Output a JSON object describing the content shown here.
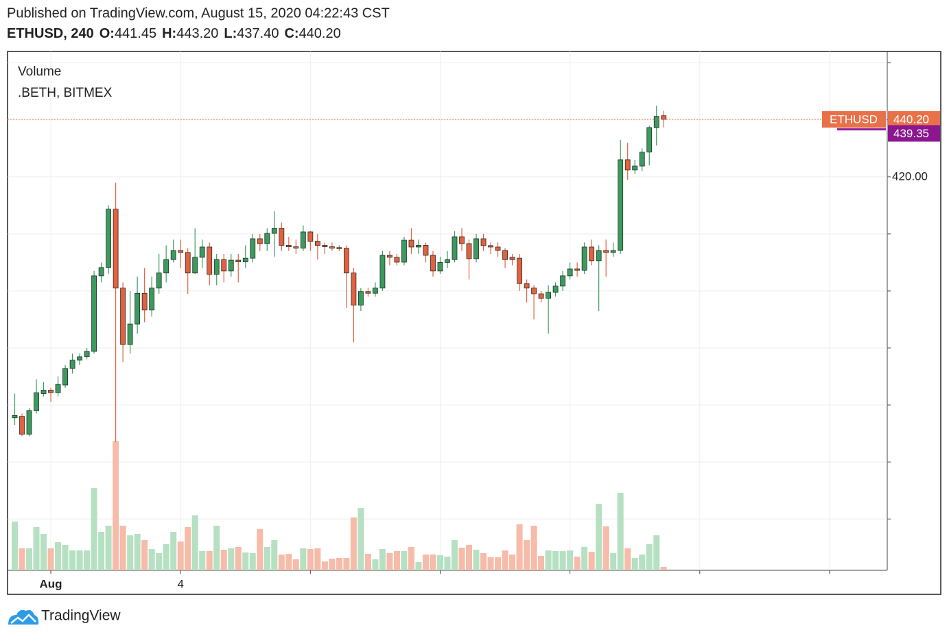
{
  "chart_data": {
    "type": "candlestick",
    "title": "Published on TradingView.com, August 15, 2020 04:22:43 CST",
    "legend_items": [
      "ETHUSD, 240",
      "O:",
      "441.45",
      "H:",
      "443.20",
      "L:",
      "437.40",
      "C:",
      "440.20"
    ],
    "pane_labels": [
      "Volume",
      ".BETH, BITMEX"
    ],
    "brand": "TradingView",
    "xlim": [
      -1,
      121
    ],
    "xticks": [
      {
        "value": 5,
        "label": "Aug"
      },
      {
        "value": 23,
        "label": "4"
      },
      {
        "value": 41,
        "label": null
      },
      {
        "value": 59,
        "label": null
      },
      {
        "value": 77,
        "label": null
      },
      {
        "value": 95,
        "label": null
      },
      {
        "value": 113,
        "label": null
      }
    ],
    "ylim": [
      282,
      464
    ],
    "yticks": [
      {
        "value": 300,
        "label": null
      },
      {
        "value": 320,
        "label": null
      },
      {
        "value": 340,
        "label": null
      },
      {
        "value": 360,
        "label": null
      },
      {
        "value": 380,
        "label": null
      },
      {
        "value": 400,
        "label": null
      },
      {
        "value": 420,
        "label": "420.00"
      },
      {
        "value": 440,
        "label": null
      },
      {
        "value": 460,
        "label": null
      }
    ],
    "grid": true,
    "up_color": "#3c9a5f",
    "down_color": "#e5603f",
    "volume_up_color": "#b6e0c2",
    "volume_down_color": "#f6bba9",
    "open": [
      335.5,
      336,
      329.7,
      338,
      344,
      345.2,
      344.3,
      347,
      352.8,
      355.7,
      357,
      358.8,
      385.3,
      388.2,
      408.7,
      381,
      361.2,
      368.4,
      379.2,
      373.3,
      381,
      386.3,
      391,
      394.2,
      393.5,
      386.3,
      391.8,
      395.4,
      385.8,
      391,
      387,
      390.8,
      390.2,
      391.5,
      398.3,
      396.6,
      400.2,
      402,
      396,
      395.5,
      395,
      400.7,
      397.4,
      396,
      395.5,
      395.2,
      395,
      386.3,
      375,
      379.8,
      379.2,
      381,
      392.5,
      391.8,
      390.1,
      397.8,
      395.4,
      396,
      392.5,
      387,
      390,
      391,
      399,
      396.6,
      391.3,
      398.3,
      395.9,
      395.4,
      394.2,
      391.8,
      391.5,
      382.6,
      381,
      379,
      377.4,
      379.5,
      381.7,
      385.3,
      387.7,
      387.2,
      395.4,
      390.6,
      394.2,
      393.5,
      394.2,
      426,
      422.4,
      423.8,
      428.7,
      437.3,
      441.45
    ],
    "high": [
      344,
      337,
      339,
      349,
      348,
      346,
      350,
      354,
      358,
      358,
      360,
      387,
      390,
      410,
      418,
      383,
      380,
      385,
      388,
      385,
      393,
      396,
      398,
      398,
      395,
      402,
      398,
      397,
      393,
      393,
      393,
      393,
      396,
      400,
      400,
      402,
      408,
      404,
      399,
      398,
      403,
      401,
      400,
      397,
      397,
      396,
      396,
      388,
      381,
      381,
      383,
      394,
      394,
      393,
      399,
      402,
      398,
      397,
      394,
      392,
      394,
      401,
      402,
      398,
      400,
      400,
      397,
      397,
      395,
      393,
      393,
      384,
      382,
      380,
      382,
      383,
      387,
      390,
      390,
      397,
      398,
      396,
      398,
      397,
      433,
      432,
      426,
      430,
      438,
      445,
      443.2
    ],
    "low": [
      333,
      329,
      329,
      337,
      343,
      341,
      343,
      346,
      351,
      354,
      356,
      358,
      383,
      386,
      327,
      355,
      358,
      365,
      369,
      371,
      379,
      383,
      390,
      388,
      379,
      386,
      388,
      382,
      382,
      383,
      385,
      383,
      388,
      390,
      394,
      394,
      392,
      394,
      394,
      393,
      394,
      394,
      391,
      393,
      394,
      394,
      374,
      362,
      373,
      378,
      378,
      380,
      389,
      389,
      389,
      393,
      393,
      390,
      385,
      386,
      388,
      390,
      394,
      384,
      390,
      394,
      393,
      392,
      388,
      389,
      380,
      376,
      370,
      376,
      365,
      378,
      380,
      384,
      385,
      386,
      389,
      373,
      385,
      392,
      393,
      419,
      421,
      422,
      424,
      431,
      437.4
    ],
    "close": [
      336.3,
      329.7,
      338,
      344.3,
      345.2,
      344.3,
      347.2,
      352.8,
      355.7,
      356.9,
      358.8,
      385.3,
      388.2,
      408.7,
      381,
      361.2,
      368.4,
      379.2,
      373.3,
      381,
      386.3,
      391,
      394.2,
      393.5,
      386.3,
      391.8,
      395.4,
      385.8,
      391,
      387,
      390.8,
      390.2,
      391.5,
      398.3,
      396.6,
      400.2,
      402,
      396,
      395.5,
      395,
      400.7,
      397.4,
      396,
      395.5,
      395,
      395,
      386.3,
      375,
      379.8,
      379.2,
      381,
      392.5,
      391.8,
      390.1,
      397.8,
      395.4,
      396,
      392.5,
      387,
      390,
      391,
      399,
      396.6,
      391.3,
      398.3,
      395.9,
      395.4,
      394.2,
      391,
      391,
      382.6,
      381,
      379,
      377.4,
      379.5,
      381.7,
      385.3,
      387.7,
      387.2,
      395.4,
      390.6,
      394.2,
      393.5,
      394.2,
      426,
      422.4,
      423.8,
      428.7,
      437.3,
      441.2,
      440.2
    ],
    "volume": [
      71,
      32,
      32,
      63,
      53,
      32,
      41,
      37,
      29,
      29,
      29,
      120,
      56,
      65,
      188,
      65,
      51,
      53,
      44,
      31,
      25,
      38,
      56,
      42,
      63,
      80,
      28,
      28,
      65,
      30,
      32,
      34,
      26,
      25,
      60,
      34,
      44,
      23,
      24,
      16,
      32,
      31,
      32,
      13,
      17,
      18,
      18,
      77,
      91,
      24,
      16,
      31,
      25,
      28,
      28,
      34,
      12,
      23,
      23,
      22,
      20,
      44,
      33,
      37,
      30,
      25,
      19,
      19,
      29,
      23,
      67,
      44,
      65,
      21,
      29,
      28,
      28,
      29,
      20,
      34,
      27,
      97,
      64,
      25,
      113,
      32,
      18,
      23,
      38,
      51,
      5
    ],
    "last_price": {
      "symbol": "ETHUSD",
      "value": 440.2,
      "label": "440.20",
      "color": "#e8714a"
    },
    "indicator_last": {
      "value": 439.35,
      "color": "#8b1690"
    }
  }
}
